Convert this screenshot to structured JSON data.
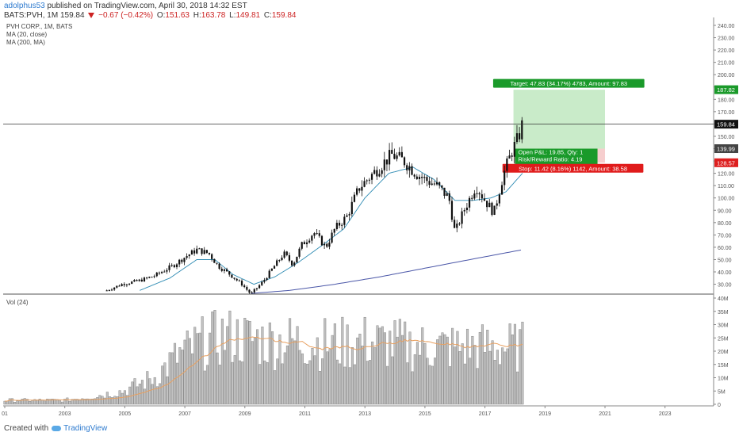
{
  "header": {
    "user": "adolphus53",
    "published": "published on TradingView.com, April 30, 2018 14:32 EST",
    "symbol": "BATS:PVH, 1M",
    "last": "159.84",
    "change": "−0.67 (−0.42%)",
    "o_label": "O:",
    "o": "151.63",
    "h_label": "H:",
    "h": "163.78",
    "l_label": "L:",
    "l": "149.81",
    "c_label": "C:",
    "c": "159.84"
  },
  "footer": {
    "created": "Created with",
    "brand": "TradingView"
  },
  "chart_data": {
    "type": "candlestick",
    "legend": [
      "PVH CORP., 1M, BATS",
      "MA (20, close)",
      "MA (200, MA)"
    ],
    "volume_label": "Vol (24)",
    "x_ticks": [
      "01",
      "2003",
      "2005",
      "2007",
      "2009",
      "2011",
      "2013",
      "2015",
      "2017",
      "2019",
      "2021",
      "2023"
    ],
    "price_axis": {
      "range": [
        22,
        240
      ],
      "ticks": [
        30,
        40,
        50,
        60,
        70,
        80,
        90,
        100,
        110,
        120,
        130,
        140,
        150,
        160,
        170,
        180,
        190,
        200,
        210,
        220,
        230,
        240
      ],
      "tick_labels": [
        "30.00",
        "40.00",
        "50.00",
        "60.00",
        "70.00",
        "80.00",
        "90.00",
        "100.00",
        "110.00",
        "120.00",
        "130.00",
        "140.00",
        "150.00",
        "160.00",
        "170.00",
        "180.00",
        "190.00",
        "200.00",
        "210.00",
        "220.00",
        "230.00",
        "240.00"
      ]
    },
    "volume_axis": {
      "range": [
        0,
        40
      ],
      "ticks": [
        0,
        5,
        10,
        15,
        20,
        25,
        30,
        35,
        40
      ],
      "tick_labels": [
        "0",
        "5M",
        "10M",
        "15M",
        "20M",
        "25M",
        "30M",
        "35M",
        "40M"
      ]
    },
    "price_tags": [
      {
        "value": 187.82,
        "label": "187.82",
        "color": "#1a9a2a"
      },
      {
        "value": 159.84,
        "label": "159.84",
        "color": "#111111"
      },
      {
        "value": 139.99,
        "label": "139.99",
        "color": "#444444"
      },
      {
        "value": 128.57,
        "label": "128.57",
        "color": "#dd1f1f"
      }
    ],
    "position": {
      "entry": 139.99,
      "target": 187.82,
      "stop": 128.57,
      "start_year": 2017.95,
      "end_year": 2021.0,
      "target_label": "Target: 47.83 (34.17%) 4783, Amount: 97.83",
      "pnl_label": "Open P&L: 19.85, Qty: 1",
      "rr_label": "Risk/Reward Ratio: 4.19",
      "stop_label": "Stop: 11.42 (8.16%) 1142, Amount: 38.58"
    },
    "price_anchors": [
      [
        2004.4,
        25
      ],
      [
        2004.9,
        30
      ],
      [
        2005.5,
        33
      ],
      [
        2006.0,
        37
      ],
      [
        2006.6,
        45
      ],
      [
        2007.0,
        52
      ],
      [
        2007.4,
        58
      ],
      [
        2007.8,
        55
      ],
      [
        2008.1,
        45
      ],
      [
        2008.5,
        38
      ],
      [
        2008.9,
        30
      ],
      [
        2009.2,
        22
      ],
      [
        2009.6,
        32
      ],
      [
        2009.9,
        42
      ],
      [
        2010.3,
        55
      ],
      [
        2010.6,
        46
      ],
      [
        2010.9,
        62
      ],
      [
        2011.3,
        72
      ],
      [
        2011.7,
        60
      ],
      [
        2012.0,
        75
      ],
      [
        2012.4,
        85
      ],
      [
        2012.8,
        108
      ],
      [
        2013.2,
        118
      ],
      [
        2013.6,
        128
      ],
      [
        2013.9,
        135
      ],
      [
        2014.3,
        130
      ],
      [
        2014.7,
        120
      ],
      [
        2015.0,
        115
      ],
      [
        2015.4,
        110
      ],
      [
        2015.8,
        100
      ],
      [
        2016.0,
        72
      ],
      [
        2016.3,
        90
      ],
      [
        2016.7,
        110
      ],
      [
        2017.0,
        98
      ],
      [
        2017.3,
        88
      ],
      [
        2017.6,
        118
      ],
      [
        2017.9,
        138
      ],
      [
        2018.1,
        148
      ],
      [
        2018.25,
        160
      ]
    ],
    "ma20_anchors": [
      [
        2005.5,
        25
      ],
      [
        2006.5,
        35
      ],
      [
        2007.4,
        50
      ],
      [
        2008.0,
        50
      ],
      [
        2008.6,
        38
      ],
      [
        2009.3,
        30
      ],
      [
        2010.0,
        36
      ],
      [
        2010.8,
        48
      ],
      [
        2011.6,
        62
      ],
      [
        2012.3,
        75
      ],
      [
        2013.0,
        100
      ],
      [
        2013.8,
        120
      ],
      [
        2014.6,
        125
      ],
      [
        2015.3,
        115
      ],
      [
        2016.0,
        98
      ],
      [
        2016.6,
        98
      ],
      [
        2017.2,
        100
      ],
      [
        2017.7,
        105
      ],
      [
        2018.25,
        120
      ]
    ],
    "ma200_anchors": [
      [
        2009.2,
        22.5
      ],
      [
        2010.5,
        25
      ],
      [
        2012.0,
        30
      ],
      [
        2013.5,
        36
      ],
      [
        2015.0,
        43
      ],
      [
        2016.5,
        50
      ],
      [
        2018.25,
        58
      ]
    ],
    "volume_anchors": [
      [
        2001.0,
        1.5
      ],
      [
        2003.0,
        1.5
      ],
      [
        2004.0,
        3
      ],
      [
        2005.0,
        5
      ],
      [
        2006.0,
        10
      ],
      [
        2006.8,
        18
      ],
      [
        2007.5,
        22
      ],
      [
        2008.3,
        25
      ],
      [
        2009.0,
        24
      ],
      [
        2010.0,
        23
      ],
      [
        2011.0,
        23
      ],
      [
        2012.0,
        22
      ],
      [
        2013.0,
        23
      ],
      [
        2014.0,
        22
      ],
      [
        2015.0,
        21
      ],
      [
        2016.0,
        21
      ],
      [
        2017.0,
        21
      ],
      [
        2018.25,
        21
      ]
    ]
  }
}
